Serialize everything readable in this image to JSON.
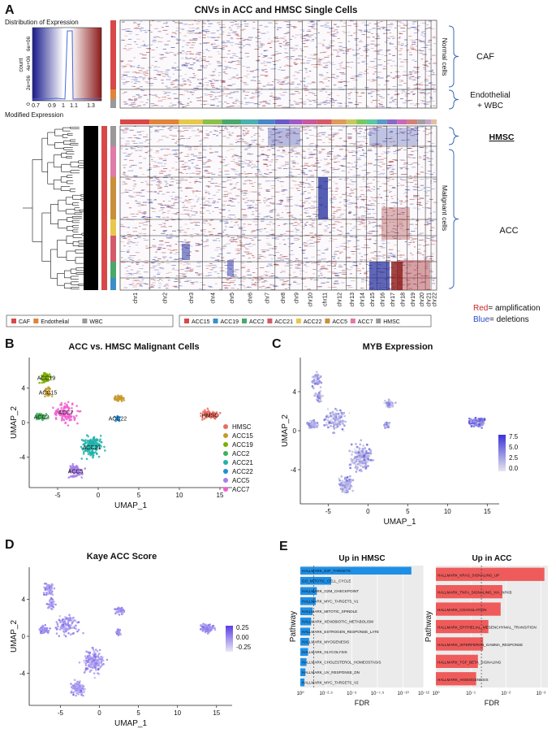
{
  "panels": {
    "A": {
      "letter": "A",
      "title": "CNVs in ACC and HMSC Single Cells",
      "color_key": {
        "title": "Distribution of Expression",
        "ylabel": "count",
        "yticks": [
          "0",
          "2e+06",
          "4e+06",
          "6e+06"
        ],
        "xticks": [
          "0.7",
          "0.9",
          "1",
          "1.1",
          "1.3"
        ],
        "xlabel": "Modified Expression"
      },
      "chromosomes": [
        "chr1",
        "chr2",
        "chr3",
        "chr4",
        "chr5",
        "chr6",
        "chr7",
        "chr8",
        "chr9",
        "chr10",
        "chr11",
        "chr12",
        "chr13",
        "chr14",
        "chr15",
        "chr16",
        "chr17",
        "chr18",
        "chr19",
        "chr20",
        "chr21",
        "chr22"
      ],
      "chrom_colors": [
        "#d94848",
        "#e0843a",
        "#e8c84a",
        "#8fbf4a",
        "#4aa86a",
        "#4ab0b0",
        "#4a86c8",
        "#6a5ac8",
        "#a05ac8",
        "#c85aa0",
        "#d45a6a",
        "#e09a5a",
        "#c8c85a",
        "#7ac85a",
        "#5ac8a0",
        "#5a9ac8",
        "#8a6ac8",
        "#c86ab4",
        "#d4807a",
        "#a0a0a0",
        "#c8a0d0",
        "#e0c0a0"
      ],
      "side_labels": {
        "normal": "Normal cells",
        "malignant": "Malignant cells",
        "caf": "CAF",
        "endo_wbc_line1": "Endothelial",
        "endo_wbc_line2": "+ WBC",
        "hmsc": "HMSC",
        "acc": "ACC"
      },
      "legend_normal": [
        {
          "label": "CAF",
          "color": "#d94848"
        },
        {
          "label": "Endothelial",
          "color": "#e0843a"
        },
        {
          "label": "WBC",
          "color": "#999999"
        }
      ],
      "legend_malignant": [
        {
          "label": "ACC15",
          "color": "#d94848"
        },
        {
          "label": "ACC19",
          "color": "#3a8fc8"
        },
        {
          "label": "ACC2",
          "color": "#4aa86a"
        },
        {
          "label": "ACC21",
          "color": "#d45a6a"
        },
        {
          "label": "ACC22",
          "color": "#e8c84a"
        },
        {
          "label": "ACC5",
          "color": "#c8903a"
        },
        {
          "label": "ACC7",
          "color": "#e07aa8"
        },
        {
          "label": "HMSC",
          "color": "#999999"
        }
      ],
      "notes": {
        "red_word": "Red",
        "red_rest": "= amplification",
        "blue_word": "Blue",
        "blue_rest": "= deletions"
      }
    },
    "B": {
      "letter": "B",
      "chart_data": {
        "type": "scatter",
        "title": "ACC vs. HMSC Malignant Cells",
        "xlabel": "UMAP_1",
        "ylabel": "UMAP_2",
        "xlim": [
          -8.5,
          16.5
        ],
        "ylim": [
          -7.5,
          7.5
        ],
        "xticks": [
          -5,
          0,
          5,
          10,
          15
        ],
        "yticks": [
          -4,
          0,
          4
        ],
        "legend": [
          {
            "name": "HMSC",
            "color": "#ee6a5e"
          },
          {
            "name": "ACC15",
            "color": "#c49a2a"
          },
          {
            "name": "ACC19",
            "color": "#7cae00"
          },
          {
            "name": "ACC2",
            "color": "#3eb059"
          },
          {
            "name": "ACC21",
            "color": "#20b2aa"
          },
          {
            "name": "ACC22",
            "color": "#1f8fd6"
          },
          {
            "name": "ACC5",
            "color": "#a77ee8"
          },
          {
            "name": "ACC7",
            "color": "#ef5fd0"
          }
        ],
        "clusters": [
          {
            "name": "HMSC",
            "label": "HMSC",
            "cx": 13.8,
            "cy": 0.9,
            "sx": 0.9,
            "sy": 0.45,
            "n": 90
          },
          {
            "name": "ACC15",
            "label": "ACC15",
            "cx": -6.2,
            "cy": 3.5,
            "sx": 0.45,
            "sy": 0.5,
            "n": 30
          },
          {
            "name": "ACC19",
            "label": "ACC19",
            "cx": -6.4,
            "cy": 5.2,
            "sx": 0.6,
            "sy": 0.6,
            "n": 60
          },
          {
            "name": "ACC2",
            "label": "ACC2",
            "cx": -7.0,
            "cy": 0.7,
            "sx": 0.7,
            "sy": 0.4,
            "n": 50
          },
          {
            "name": "ACC21",
            "label": "ACC21",
            "cx": -0.8,
            "cy": -2.8,
            "sx": 1.2,
            "sy": 1.2,
            "n": 170
          },
          {
            "name": "ACC22",
            "label": "ACC22",
            "cx": 2.4,
            "cy": 0.5,
            "sx": 0.3,
            "sy": 0.3,
            "n": 25
          },
          {
            "name": "ACC5",
            "label": "ACC5",
            "cx": -2.8,
            "cy": -5.6,
            "sx": 0.8,
            "sy": 0.7,
            "n": 90
          },
          {
            "name": "ACC7",
            "label": "ACC7",
            "cx": -4.0,
            "cy": 1.2,
            "sx": 1.3,
            "sy": 1.0,
            "n": 110
          },
          {
            "name": "ACC15b",
            "label": "",
            "cx": 2.6,
            "cy": 2.8,
            "sx": 0.6,
            "sy": 0.4,
            "n": 40
          }
        ]
      }
    },
    "C": {
      "letter": "C",
      "chart_data": {
        "type": "scatter",
        "title": "MYB Expression",
        "xlabel": "UMAP_1",
        "ylabel": "UMAP_2",
        "xlim": [
          -8.5,
          16.5
        ],
        "ylim": [
          -7.5,
          7.5
        ],
        "xticks": [
          -5,
          0,
          5,
          10,
          15
        ],
        "yticks": [
          -4,
          0,
          4
        ],
        "color_scale": {
          "min": 0.0,
          "max": 7.5,
          "ticks": [
            "7.5",
            "5.0",
            "2.5",
            "0.0"
          ],
          "low_color": "#e6e6ec",
          "high_color": "#3b32d9"
        }
      }
    },
    "D": {
      "letter": "D",
      "chart_data": {
        "type": "scatter",
        "title": "Kaye ACC Score",
        "xlabel": "UMAP_1",
        "ylabel": "UMAP_2",
        "xlim": [
          -9,
          17
        ],
        "ylim": [
          -7.5,
          7.5
        ],
        "xticks": [
          -5,
          0,
          5,
          10,
          15
        ],
        "yticks": [
          -4,
          0,
          4
        ],
        "color_scale": {
          "min": -0.25,
          "max": 0.25,
          "ticks": [
            "0.25",
            "0.00",
            "-0.25"
          ],
          "low_color": "#ece8f6",
          "high_color": "#5b3ee6"
        }
      }
    },
    "E": {
      "letter": "E",
      "left": {
        "chart_data": {
          "type": "bar",
          "title": "Up in HMSC",
          "xlabel": "FDR",
          "ylabel": "Pathway",
          "bar_color": "#1e8fe6",
          "scale": "-log10(FDR)",
          "xlim": [
            0,
            12
          ],
          "xticks": [
            "10⁰",
            "10⁻²·⁵",
            "10⁻⁵",
            "10⁻⁷·⁵",
            "10⁻¹⁰",
            "10⁻¹²"
          ],
          "xtick_values": [
            0,
            2.5,
            5,
            7.5,
            10,
            12
          ],
          "threshold": 1.3,
          "categories": [
            "HALLMARK_E2F_TARGETS",
            "GO_MITOTIC_CELL_CYCLE",
            "HALLMARK_G2M_CHECKPOINT",
            "HALLMARK_MYC_TARGETS_V1",
            "HALLMARK_MITOTIC_SPINDLE",
            "HALLMARK_XENOBIOTIC_METABOLISM",
            "HALLMARK_ESTROGEN_RESPONSE_LATE",
            "HALLMARK_MYOGENESIS",
            "HALLMARK_GLYCOLYSIS",
            "HALLMARK_CHOLESTEROL_HOMEOSTASIS",
            "HALLMARK_UV_RESPONSE_DN",
            "HALLMARK_MYC_TARGETS_V2"
          ],
          "values": [
            10.8,
            3.0,
            1.6,
            1.5,
            1.2,
            1.05,
            0.95,
            0.85,
            0.75,
            0.6,
            0.5,
            0.4
          ]
        }
      },
      "right": {
        "chart_data": {
          "type": "bar",
          "title": "Up in ACC",
          "xlabel": "FDR",
          "ylabel": "Pathway",
          "bar_color": "#ef5b5b",
          "scale": "-log10(FDR)",
          "xlim": [
            0,
            3.2
          ],
          "xticks": [
            "10⁰",
            "10⁻¹",
            "10⁻²",
            "10⁻³"
          ],
          "xtick_values": [
            0,
            1,
            2,
            3
          ],
          "threshold": 1.3,
          "categories": [
            "HALLMARK_KRAS_SIGNALING_UP",
            "HALLMARK_TNFA_SIGNALING_VIA_NFKB",
            "HALLMARK_COAGULATION",
            "HALLMARK_EPITHELIAL_MESENCHYMAL_TRANSITION",
            "HALLMARK_INTERFERON_GAMMA_RESPONSE",
            "HALLMARK_TGF_BETA_SIGNALING",
            "HALLMARK_ANGIOGENESIS"
          ],
          "values": [
            3.1,
            1.9,
            1.85,
            1.5,
            1.35,
            1.2,
            1.15
          ]
        }
      }
    }
  }
}
